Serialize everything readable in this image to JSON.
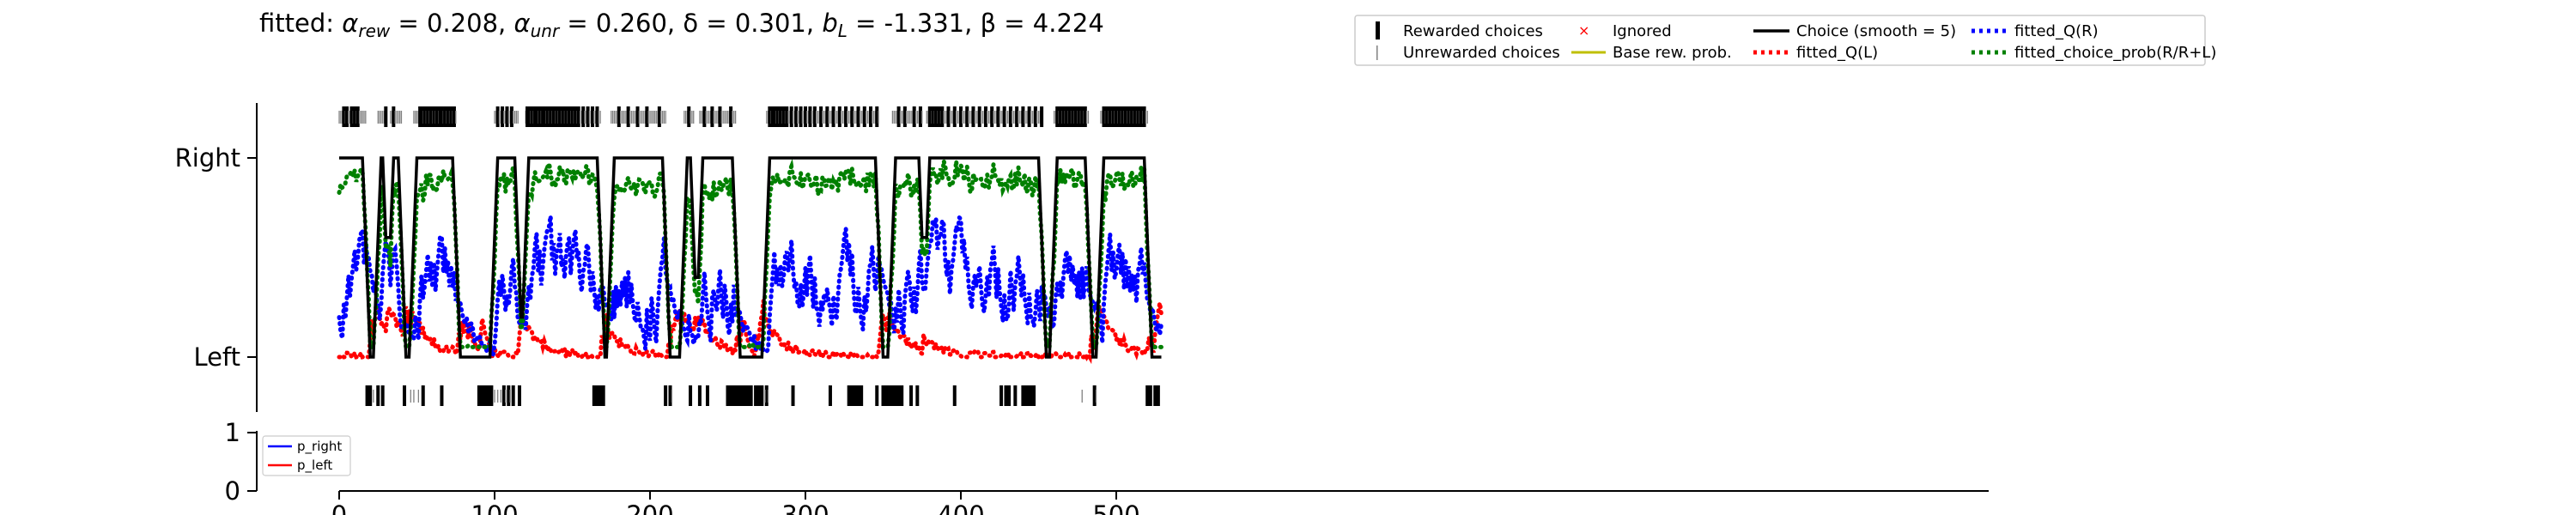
{
  "chart_data": [
    {
      "type": "line",
      "title": "fitted: α_rew = 0.208, α_unr = 0.260, δ = 0.301, b_L = -1.331, β = 4.224",
      "title_parts": {
        "prefix": "fitted: ",
        "alpha": "α",
        "rew_sub": "rew",
        "unr_sub": "unr",
        "L_sub": "L",
        "v_alpha_rew": " = 0.208, ",
        "v_alpha_unr": " = 0.260, ",
        "delta_text": "δ = 0.301, ",
        "b": "b",
        "v_b": " = -1.331, ",
        "beta_text": "β = 4.224"
      },
      "xlim": [
        0,
        530
      ],
      "ylim": [
        0,
        1
      ],
      "x_ticks": [
        0,
        100,
        200,
        300,
        400,
        500
      ],
      "y_ticks": [
        {
          "value": 0,
          "label": "Left"
        },
        {
          "value": 1,
          "label": "Right"
        }
      ],
      "legend_position": "top-right",
      "legend": [
        {
          "label": "Rewarded choices",
          "marker": "thick-tick",
          "color": "#000000"
        },
        {
          "label": "Unrewarded choices",
          "marker": "thin-tick",
          "color": "#808080"
        },
        {
          "label": "Ignored",
          "marker": "x",
          "color": "#ff0000"
        },
        {
          "label": "Base rew. prob.",
          "marker": "line",
          "color": "#bfbf00"
        },
        {
          "label": "Choice (smooth = 5)",
          "marker": "line",
          "color": "#000000"
        },
        {
          "label": "fitted_Q(L)",
          "marker": "dotted",
          "color": "#ff0000"
        },
        {
          "label": "fitted_Q(R)",
          "marker": "dotted",
          "color": "#0000ff"
        },
        {
          "label": "fitted_choice_prob(R/R+L)",
          "marker": "dotted",
          "color": "#008000"
        }
      ],
      "n_trials": 530,
      "right_choice_blocks": [
        [
          0,
          17
        ],
        [
          25,
          30
        ],
        [
          33,
          40
        ],
        [
          48,
          75
        ],
        [
          100,
          115
        ],
        [
          120,
          168
        ],
        [
          175,
          210
        ],
        [
          222,
          228
        ],
        [
          232,
          255
        ],
        [
          275,
          347
        ],
        [
          356,
          375
        ],
        [
          378,
          452
        ],
        [
          460,
          482
        ],
        [
          490,
          520
        ]
      ],
      "rewarded_right_trials": [
        3,
        5,
        8,
        10,
        12,
        20,
        30,
        35,
        52,
        53,
        55,
        57,
        59,
        61,
        63,
        65,
        66,
        68,
        70,
        72,
        74,
        102,
        105,
        108,
        111,
        121,
        122,
        124,
        126,
        127,
        129,
        131,
        132,
        134,
        136,
        138,
        140,
        142,
        144,
        146,
        148,
        150,
        152,
        154,
        157,
        160,
        163,
        166,
        180,
        186,
        192,
        198,
        206,
        225,
        235,
        240,
        245,
        252,
        277,
        279,
        280,
        282,
        284,
        286,
        288,
        291,
        294,
        297,
        300,
        303,
        306,
        310,
        314,
        318,
        322,
        326,
        330,
        334,
        338,
        342,
        346,
        360,
        364,
        370,
        374,
        380,
        382,
        384,
        386,
        388,
        392,
        396,
        400,
        404,
        408,
        412,
        416,
        420,
        424,
        428,
        432,
        436,
        440,
        444,
        448,
        452,
        462,
        464,
        466,
        468,
        470,
        472,
        474,
        476,
        478,
        480,
        492,
        494,
        496,
        498,
        500,
        502,
        504,
        506,
        508,
        510,
        512,
        514,
        516,
        518
      ],
      "rewarded_left_trials": [
        18,
        20,
        25,
        28,
        42,
        54,
        66,
        90,
        91,
        92,
        93,
        94,
        95,
        96,
        98,
        106,
        109,
        112,
        116,
        164,
        165,
        166,
        167,
        168,
        170,
        210,
        213,
        226,
        232,
        237,
        250,
        252,
        254,
        256,
        258,
        260,
        261,
        262,
        263,
        265,
        268,
        270,
        272,
        275,
        292,
        316,
        328,
        329,
        330,
        331,
        333,
        334,
        336,
        346,
        350,
        351,
        352,
        353,
        355,
        356,
        358,
        360,
        362,
        368,
        372,
        396,
        426,
        429,
        431,
        435,
        440,
        441,
        443,
        445,
        447,
        486,
        520,
        522,
        525,
        527
      ],
      "unrewarded_left_trials": [
        22,
        46,
        48,
        51,
        100,
        102,
        104,
        107,
        110,
        214,
        274,
        276,
        478,
        487
      ]
    },
    {
      "type": "line",
      "xlim": [
        0,
        530
      ],
      "ylim": [
        0,
        1
      ],
      "y_ticks": [
        0,
        1
      ],
      "legend_position": "upper-left",
      "series": [
        {
          "name": "p_right",
          "color": "#0000ff",
          "values": []
        },
        {
          "name": "p_left",
          "color": "#ff0000",
          "values": []
        }
      ]
    }
  ]
}
